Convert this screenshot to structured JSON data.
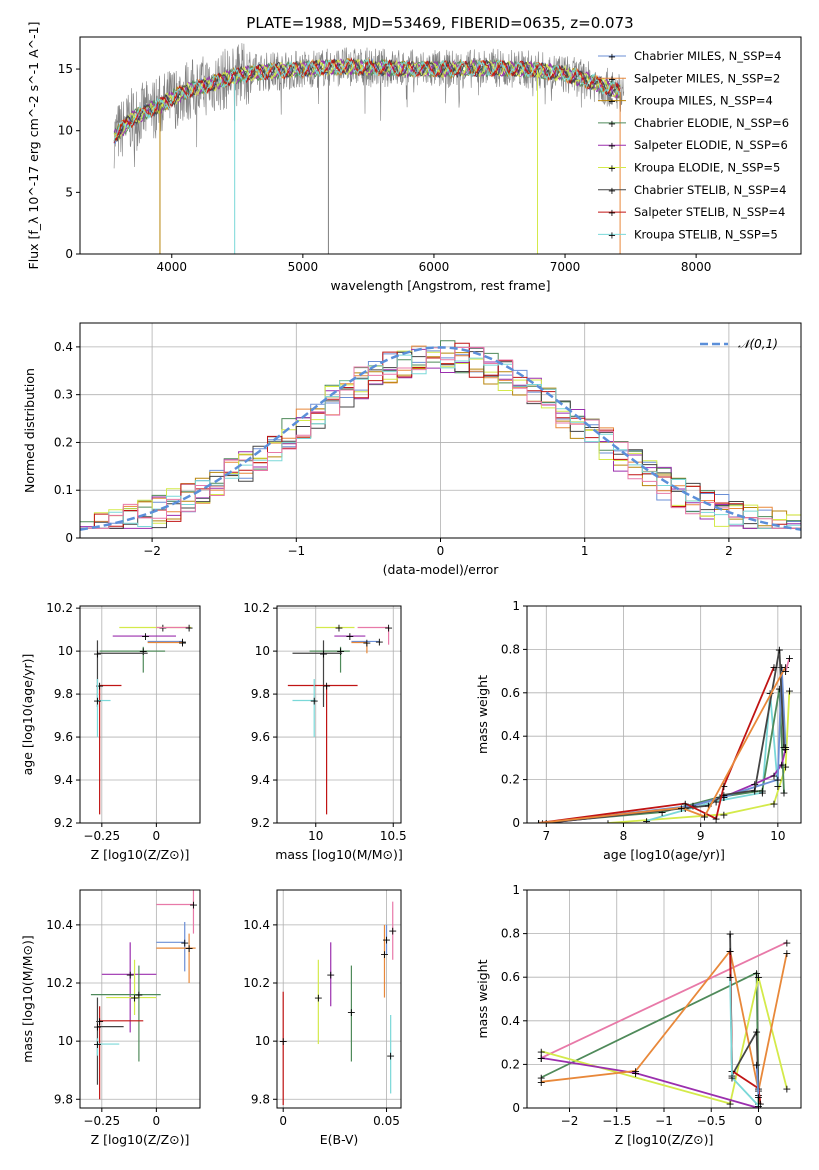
{
  "title": "PLATE=1988, MJD=53469, FIBERID=0635, z=0.073",
  "colors": {
    "chabrier_miles": "#6b8fd6",
    "salpeter_miles": "#e8883a",
    "kroupa_miles": "#b8860b",
    "chabrier_elodie": "#4f8a5a",
    "salpeter_elodie": "#9b2fae",
    "kroupa_elodie": "#d4ea4a",
    "chabrier_stelib": "#444444",
    "salpeter_stelib": "#c01414",
    "kroupa_stelib": "#7ad8d8",
    "pink": "#e879a8",
    "data": "#808080",
    "normal": "#5b8fd9"
  },
  "chart_data": [
    {
      "type": "line",
      "id": "spectrum",
      "xlabel": "wavelength [Angstrom, rest frame]",
      "ylabel": "Flux [f_λ 10^-17 erg cm^-2 s^-1 A^-1]",
      "xlim": [
        3300,
        8800
      ],
      "ylim": [
        0,
        17.6
      ],
      "xticks": [
        4000,
        5000,
        6000,
        7000,
        8000
      ],
      "yticks": [
        0,
        5,
        10,
        15
      ],
      "grid": false,
      "legend_position": "right",
      "legend": [
        {
          "label": "Chabrier MILES, N_SSP=4",
          "color_key": "chabrier_miles"
        },
        {
          "label": "Salpeter MILES, N_SSP=2",
          "color_key": "salpeter_miles"
        },
        {
          "label": "Kroupa MILES, N_SSP=4",
          "color_key": "kroupa_miles"
        },
        {
          "label": "Chabrier ELODIE, N_SSP=6",
          "color_key": "chabrier_elodie"
        },
        {
          "label": "Salpeter ELODIE, N_SSP=6",
          "color_key": "salpeter_elodie"
        },
        {
          "label": "Kroupa ELODIE, N_SSP=5",
          "color_key": "kroupa_elodie"
        },
        {
          "label": "Chabrier STELIB, N_SSP=4",
          "color_key": "chabrier_stelib"
        },
        {
          "label": "Salpeter STELIB, N_SSP=4",
          "color_key": "salpeter_stelib"
        },
        {
          "label": "Kroupa STELIB, N_SSP=5",
          "color_key": "kroupa_stelib"
        }
      ],
      "envelope": {
        "x": [
          3560,
          3700,
          3900,
          4100,
          4300,
          4500,
          4700,
          5000,
          5300,
          5600,
          5900,
          6200,
          6500,
          6800,
          7000,
          7200,
          7400,
          7600,
          7800,
          8000,
          8200,
          8500
        ],
        "y": [
          9.5,
          11,
          12,
          13.2,
          13.8,
          14.5,
          14.8,
          15,
          15.2,
          15.1,
          15,
          15,
          15.1,
          14.9,
          14.6,
          14,
          13.2,
          12.8,
          13,
          13.6,
          14.6,
          14.7
        ]
      },
      "noise_amplitude": 1.6,
      "dips": [
        3910,
        4480,
        5195,
        6790,
        7420
      ]
    },
    {
      "type": "bar",
      "id": "residuals",
      "xlabel": "(data-model)/error",
      "ylabel": "Normed distribution",
      "xlim": [
        -2.5,
        2.5
      ],
      "ylim": [
        0,
        0.45
      ],
      "xticks": [
        -2,
        -1,
        0,
        1,
        2
      ],
      "yticks": [
        0.0,
        0.1,
        0.2,
        0.3,
        0.4
      ],
      "grid": true,
      "legend_label": "𝒩(0,1)",
      "legend_position": "top-right",
      "bin_width": 0.1,
      "gaussian": {
        "mu": 0,
        "sigma": 1
      }
    },
    {
      "type": "scatter",
      "id": "age_vs_z",
      "xlabel": "Z [log10(Z/Z⊙)]",
      "ylabel": "age [log10(age/yr)]",
      "xlim": [
        -0.35,
        0.2
      ],
      "ylim": [
        9.2,
        10.21
      ],
      "xticks": [
        -0.25,
        0.0
      ],
      "yticks": [
        9.2,
        9.4,
        9.6,
        9.8,
        10.0,
        10.2
      ],
      "grid": true,
      "points": [
        {
          "color_key": "kroupa_elodie",
          "x": 0.03,
          "y": 10.11,
          "xerr": [
            0.2,
            0.13
          ],
          "yerr": [
            0,
            0
          ]
        },
        {
          "color_key": "pink",
          "x": 0.15,
          "y": 10.11,
          "xerr": [
            0.15,
            0
          ],
          "yerr": [
            0,
            0
          ]
        },
        {
          "color_key": "chabrier_miles",
          "x": 0.12,
          "y": 10.045,
          "xerr": [
            0.16,
            0
          ],
          "yerr": [
            0,
            0
          ]
        },
        {
          "color_key": "salpeter_miles",
          "x": 0.12,
          "y": 10.04,
          "xerr": [
            0.16,
            0
          ],
          "yerr": [
            0,
            0
          ]
        },
        {
          "color_key": "salpeter_elodie",
          "x": -0.05,
          "y": 10.07,
          "xerr": [
            0.15,
            0.14
          ],
          "yerr": [
            0.0,
            0.0
          ]
        },
        {
          "color_key": "chabrier_elodie",
          "x": -0.06,
          "y": 10.0,
          "xerr": [
            0.2,
            0.1
          ],
          "yerr": [
            0.1,
            0.02
          ]
        },
        {
          "color_key": "chabrier_stelib",
          "x": -0.27,
          "y": 9.99,
          "xerr": [
            0.0,
            0.23
          ],
          "yerr": [
            0.25,
            0.06
          ]
        },
        {
          "color_key": "salpeter_stelib",
          "x": -0.26,
          "y": 9.84,
          "xerr": [
            0.0,
            0.1
          ],
          "yerr": [
            0.6,
            0.0
          ]
        },
        {
          "color_key": "kroupa_stelib",
          "x": -0.27,
          "y": 9.77,
          "xerr": [
            0.0,
            0.06
          ],
          "yerr": [
            0.17,
            0.1
          ]
        }
      ]
    },
    {
      "type": "scatter",
      "id": "age_vs_mass",
      "xlabel": "mass [log10(M/M⊙)]",
      "ylabel": "",
      "xlim": [
        9.75,
        10.55
      ],
      "ylim": [
        9.2,
        10.21
      ],
      "xticks": [
        10.0,
        10.5
      ],
      "yticks": [
        9.2,
        9.4,
        9.6,
        9.8,
        10.0,
        10.2
      ],
      "grid": true,
      "points": [
        {
          "color_key": "kroupa_elodie",
          "x": 10.15,
          "y": 10.11,
          "xerr": [
            0.15,
            0.1
          ],
          "yerr": [
            0,
            0
          ]
        },
        {
          "color_key": "pink",
          "x": 10.47,
          "y": 10.11,
          "xerr": [
            0.2,
            0
          ],
          "yerr": [
            0.08,
            0
          ]
        },
        {
          "color_key": "chabrier_miles",
          "x": 10.41,
          "y": 10.045,
          "xerr": [
            0.18,
            0
          ],
          "yerr": [
            0,
            0
          ]
        },
        {
          "color_key": "salpeter_miles",
          "x": 10.33,
          "y": 10.04,
          "xerr": [
            0.1,
            0
          ],
          "yerr": [
            0.05,
            0
          ]
        },
        {
          "color_key": "salpeter_elodie",
          "x": 10.22,
          "y": 10.07,
          "xerr": [
            0.1,
            0.1
          ],
          "yerr": [
            0,
            0
          ]
        },
        {
          "color_key": "chabrier_elodie",
          "x": 10.16,
          "y": 10.0,
          "xerr": [
            0.2,
            0.06
          ],
          "yerr": [
            0.1,
            0.02
          ]
        },
        {
          "color_key": "chabrier_stelib",
          "x": 10.05,
          "y": 9.99,
          "xerr": [
            0.2,
            0.12
          ],
          "yerr": [
            0.25,
            0.06
          ]
        },
        {
          "color_key": "salpeter_stelib",
          "x": 10.07,
          "y": 9.84,
          "xerr": [
            0.25,
            0.2
          ],
          "yerr": [
            0.6,
            0.0
          ]
        },
        {
          "color_key": "kroupa_stelib",
          "x": 9.99,
          "y": 9.77,
          "xerr": [
            0.14,
            0.01
          ],
          "yerr": [
            0.17,
            0.1
          ]
        }
      ]
    },
    {
      "type": "line",
      "id": "weight_vs_age",
      "xlabel": "age [log10(age/yr)]",
      "ylabel": "mass weight",
      "xlim": [
        6.75,
        10.3
      ],
      "ylim": [
        0,
        1.0
      ],
      "xticks": [
        7,
        8,
        9,
        10
      ],
      "yticks": [
        0.0,
        0.2,
        0.4,
        0.6,
        0.8,
        1.0
      ],
      "grid": true,
      "series": [
        {
          "color_key": "kroupa_elodie",
          "x": [
            7.8,
            9.3,
            9.95,
            10.1,
            10.15
          ],
          "y": [
            0.0,
            0.04,
            0.09,
            0.26,
            0.61
          ]
        },
        {
          "color_key": "kroupa_stelib",
          "x": [
            8.3,
            9.2,
            9.8,
            9.9,
            10.0
          ],
          "y": [
            0.01,
            0.1,
            0.14,
            0.6,
            0.17
          ]
        },
        {
          "color_key": "chabrier_elodie",
          "x": [
            6.9,
            8.5,
            9.25,
            9.8,
            10.02,
            10.08
          ],
          "y": [
            0.0,
            0.05,
            0.12,
            0.15,
            0.62,
            0.14
          ]
        },
        {
          "color_key": "salpeter_elodie",
          "x": [
            7.0,
            8.8,
            9.3,
            9.7,
            9.95,
            10.05,
            10.1
          ],
          "y": [
            0.0,
            0.07,
            0.12,
            0.18,
            0.22,
            0.27,
            0.34
          ]
        },
        {
          "color_key": "chabrier_miles",
          "x": [
            6.95,
            8.9,
            9.3,
            10.0,
            10.05,
            10.1
          ],
          "y": [
            0.0,
            0.08,
            0.12,
            0.2,
            0.72,
            0.35
          ]
        },
        {
          "color_key": "chabrier_stelib",
          "x": [
            7.0,
            9.1,
            9.3,
            9.7,
            10.02,
            10.08
          ],
          "y": [
            0.0,
            0.08,
            0.13,
            0.15,
            0.8,
            0.35
          ]
        },
        {
          "color_key": "salpeter_stelib",
          "x": [
            6.9,
            8.8,
            9.2,
            9.3,
            9.95
          ],
          "y": [
            0.0,
            0.09,
            0.02,
            0.17,
            0.72
          ]
        },
        {
          "color_key": "salpeter_miles",
          "x": [
            6.9,
            8.75,
            9.05,
            10.1
          ],
          "y": [
            0.0,
            0.07,
            0.03,
            0.72
          ]
        },
        {
          "color_key": "pink",
          "x": [
            10.15,
            10.1
          ],
          "y": [
            0.76,
            0.7
          ]
        }
      ]
    },
    {
      "type": "scatter",
      "id": "mass_vs_z",
      "xlabel": "Z [log10(Z/Z⊙)]",
      "ylabel": "mass [log10(M/M⊙)]",
      "xlim": [
        -0.35,
        0.2
      ],
      "ylim": [
        9.77,
        10.52
      ],
      "xticks": [
        -0.25,
        0.0
      ],
      "yticks": [
        9.8,
        10.0,
        10.2,
        10.4
      ],
      "grid": true,
      "points": [
        {
          "color_key": "pink",
          "x": 0.17,
          "y": 10.47,
          "xerr": [
            0.17,
            0
          ],
          "yerr": [
            0.1,
            0.05
          ]
        },
        {
          "color_key": "chabrier_miles",
          "x": 0.13,
          "y": 10.34,
          "xerr": [
            0.13,
            0.0
          ],
          "yerr": [
            0.1,
            0.07
          ]
        },
        {
          "color_key": "salpeter_miles",
          "x": 0.15,
          "y": 10.32,
          "xerr": [
            0.15,
            0.03
          ],
          "yerr": [
            0.12,
            0.05
          ]
        },
        {
          "color_key": "salpeter_elodie",
          "x": -0.12,
          "y": 10.23,
          "xerr": [
            0.13,
            0.12
          ],
          "yerr": [
            0.2,
            0.11
          ]
        },
        {
          "color_key": "kroupa_elodie",
          "x": -0.1,
          "y": 10.15,
          "xerr": [
            0.13,
            0.1
          ],
          "yerr": [
            0.06,
            0.13
          ]
        },
        {
          "color_key": "chabrier_elodie",
          "x": -0.08,
          "y": 10.16,
          "xerr": [
            0.22,
            0.1
          ],
          "yerr": [
            0.23,
            0.1
          ]
        },
        {
          "color_key": "salpeter_stelib",
          "x": -0.26,
          "y": 10.07,
          "xerr": [
            0.0,
            0.2
          ],
          "yerr": [
            0.27,
            0.05
          ]
        },
        {
          "color_key": "chabrier_stelib",
          "x": -0.27,
          "y": 10.05,
          "xerr": [
            0.0,
            0.12
          ],
          "yerr": [
            0.2,
            0.1
          ]
        },
        {
          "color_key": "kroupa_stelib",
          "x": -0.27,
          "y": 9.99,
          "xerr": [
            0.0,
            0.1
          ],
          "yerr": [
            0.04,
            0.02
          ]
        }
      ]
    },
    {
      "type": "scatter",
      "id": "mass_vs_ebv",
      "xlabel": "E(B-V)",
      "ylabel": "",
      "xlim": [
        -0.003,
        0.057
      ],
      "ylim": [
        9.77,
        10.52
      ],
      "xticks": [
        0.0,
        0.05
      ],
      "yticks": [
        9.8,
        10.0,
        10.2,
        10.4
      ],
      "grid": true,
      "points": [
        {
          "color_key": "salpeter_stelib",
          "x": 0.0,
          "y": 10.0,
          "yerr": [
            0.22,
            0.17
          ]
        },
        {
          "color_key": "kroupa_elodie",
          "x": 0.017,
          "y": 10.15,
          "yerr": [
            0.16,
            0.13
          ]
        },
        {
          "color_key": "salpeter_elodie",
          "x": 0.023,
          "y": 10.23,
          "yerr": [
            0.11,
            0.11
          ]
        },
        {
          "color_key": "chabrier_elodie",
          "x": 0.033,
          "y": 10.1,
          "yerr": [
            0.17,
            0.16
          ]
        },
        {
          "color_key": "salpeter_miles",
          "x": 0.049,
          "y": 10.3,
          "yerr": [
            0.15,
            0.1
          ]
        },
        {
          "color_key": "chabrier_miles",
          "x": 0.05,
          "y": 10.35,
          "yerr": [
            0.05,
            0.05
          ]
        },
        {
          "color_key": "kroupa_stelib",
          "x": 0.052,
          "y": 9.95,
          "yerr": [
            0.13,
            0.14
          ]
        },
        {
          "color_key": "pink",
          "x": 0.053,
          "y": 10.38,
          "yerr": [
            0.1,
            0.1
          ]
        }
      ]
    },
    {
      "type": "line",
      "id": "weight_vs_z",
      "xlabel": "Z [log10(Z/Z⊙)]",
      "ylabel": "mass weight",
      "xlim": [
        -2.45,
        0.45
      ],
      "ylim": [
        0,
        1.0
      ],
      "xticks": [
        -2.0,
        -1.5,
        -1.0,
        -0.5,
        0.0
      ],
      "yticks": [
        0.0,
        0.2,
        0.4,
        0.6,
        0.8,
        1.0
      ],
      "grid": true,
      "series": [
        {
          "color_key": "pink",
          "x": [
            -2.3,
            0.3
          ],
          "y": [
            0.23,
            0.76
          ]
        },
        {
          "color_key": "chabrier_elodie",
          "x": [
            -2.3,
            -0.02,
            0.0
          ],
          "y": [
            0.14,
            0.62,
            0.02
          ]
        },
        {
          "color_key": "kroupa_elodie",
          "x": [
            -2.3,
            -0.3,
            0.0,
            0.3
          ],
          "y": [
            0.26,
            0.02,
            0.6,
            0.09
          ]
        },
        {
          "color_key": "salpeter_elodie",
          "x": [
            -2.3,
            -1.3,
            0.0
          ],
          "y": [
            0.23,
            0.16,
            0.0
          ]
        },
        {
          "color_key": "salpeter_miles",
          "x": [
            -2.3,
            -1.3,
            -0.3,
            0.0,
            0.3
          ],
          "y": [
            0.12,
            0.17,
            0.72,
            0.08,
            0.71
          ]
        },
        {
          "color_key": "chabrier_stelib",
          "x": [
            -0.3,
            -0.28,
            -0.02,
            0.0
          ],
          "y": [
            0.8,
            0.15,
            0.35,
            0.06
          ]
        },
        {
          "color_key": "salpeter_stelib",
          "x": [
            -0.3,
            -0.28,
            0.0,
            0.02
          ],
          "y": [
            0.72,
            0.17,
            0.09,
            0.02
          ]
        },
        {
          "color_key": "kroupa_stelib",
          "x": [
            -0.3,
            -0.28,
            0.0
          ],
          "y": [
            0.6,
            0.14,
            0.01
          ]
        },
        {
          "color_key": "chabrier_miles",
          "x": [
            -0.02,
            0.0
          ],
          "y": [
            0.2,
            0.05
          ]
        }
      ]
    }
  ]
}
